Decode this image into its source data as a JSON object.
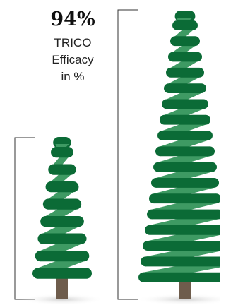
{
  "headline": "94%",
  "caption": [
    "TRICO",
    "Efficacy",
    "in %"
  ]
}
